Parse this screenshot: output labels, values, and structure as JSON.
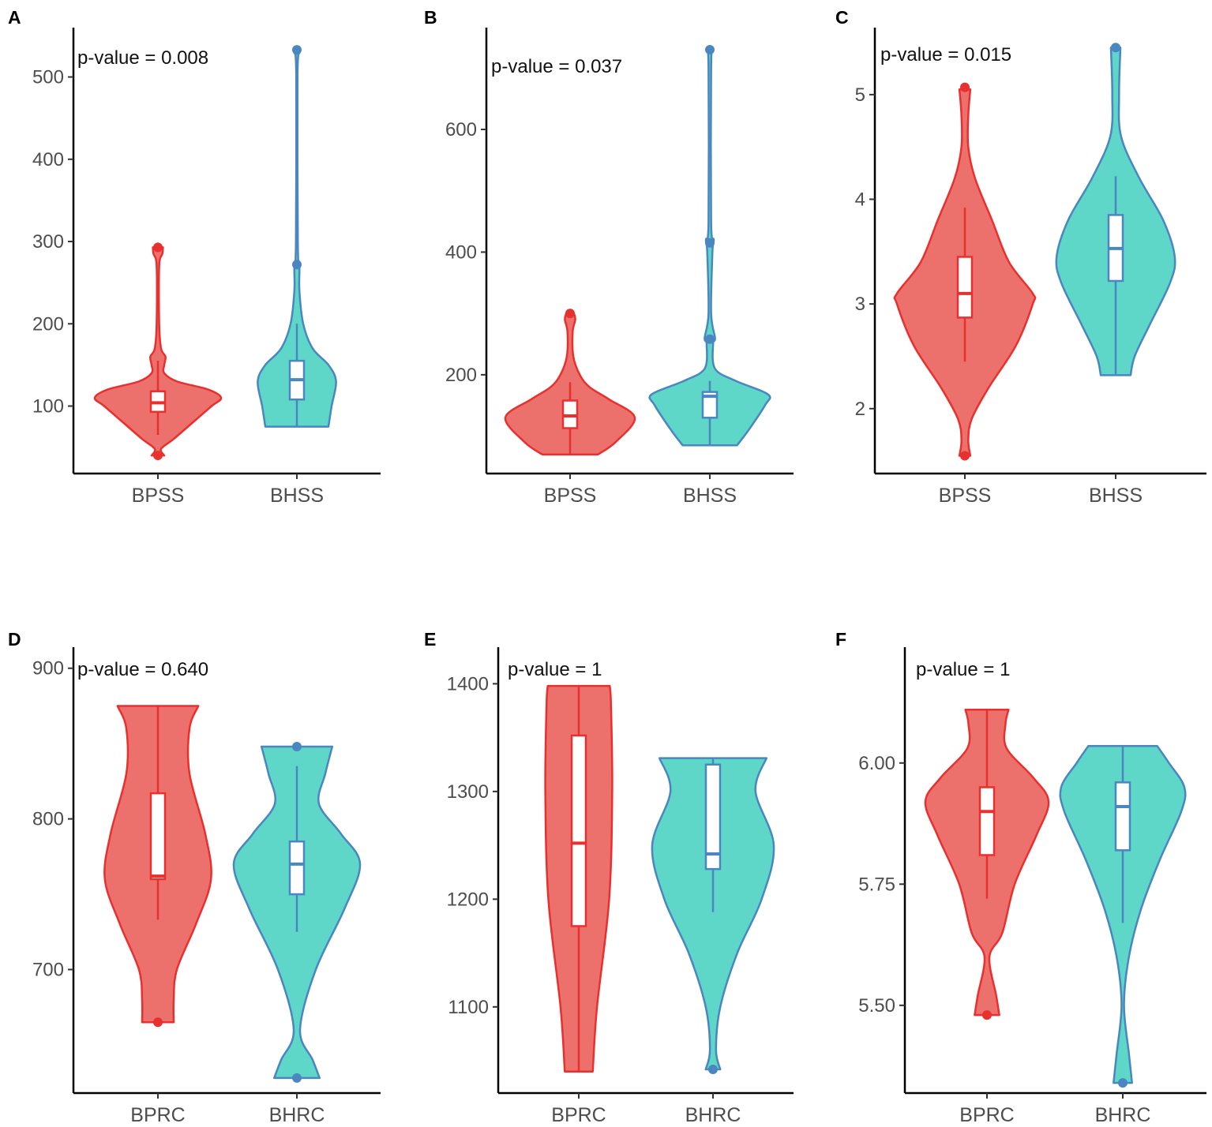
{
  "colors": {
    "group1_fill": "#ec706c",
    "group1_stroke": "#e8302e",
    "group2_fill": "#5ed6c8",
    "group2_stroke": "#4a86c0",
    "box_fill": "#ffffff",
    "axis": "#000000"
  },
  "chart_data": [
    {
      "panel": "A",
      "type": "violin",
      "annotation": "p-value = 0.008",
      "ylim": [
        18,
        560
      ],
      "yticks": [
        100,
        200,
        300,
        400,
        500
      ],
      "categories": [
        "BPSS",
        "BHSS"
      ],
      "groups": [
        {
          "name": "BPSS",
          "density": [
            [
              40,
              0.1
            ],
            [
              48,
              0.05
            ],
            [
              60,
              0.25
            ],
            [
              80,
              0.55
            ],
            [
              100,
              0.85
            ],
            [
              110,
              1.0
            ],
            [
              120,
              0.8
            ],
            [
              130,
              0.3
            ],
            [
              140,
              0.1
            ],
            [
              150,
              0.1
            ],
            [
              160,
              0.12
            ],
            [
              170,
              0.05
            ],
            [
              200,
              0.02
            ],
            [
              270,
              0.02
            ],
            [
              285,
              0.07
            ],
            [
              293,
              0.08
            ]
          ],
          "box": {
            "whisker_low": 65,
            "q1": 93,
            "median": 104,
            "q3": 118,
            "whisker_high": 155
          },
          "outliers": [
            40,
            293
          ]
        },
        {
          "name": "BHSS",
          "density": [
            [
              75,
              0.5
            ],
            [
              100,
              0.55
            ],
            [
              130,
              0.62
            ],
            [
              150,
              0.5
            ],
            [
              170,
              0.25
            ],
            [
              200,
              0.1
            ],
            [
              240,
              0.04
            ],
            [
              270,
              0.04
            ],
            [
              300,
              0.015
            ],
            [
              500,
              0.01
            ],
            [
              530,
              0.04
            ]
          ],
          "box": {
            "whisker_low": 75,
            "q1": 108,
            "median": 132,
            "q3": 155,
            "whisker_high": 200
          },
          "outliers": [
            272,
            533
          ]
        }
      ]
    },
    {
      "panel": "B",
      "type": "violin",
      "annotation": "p-value = 0.037",
      "ylim": [
        39,
        766
      ],
      "yticks": [
        200,
        400,
        600
      ],
      "categories": [
        "BPSS",
        "BHSS"
      ],
      "groups": [
        {
          "name": "BPSS",
          "density": [
            [
              70,
              0.43
            ],
            [
              90,
              0.7
            ],
            [
              130,
              1.0
            ],
            [
              160,
              0.6
            ],
            [
              180,
              0.3
            ],
            [
              200,
              0.15
            ],
            [
              230,
              0.05
            ],
            [
              270,
              0.04
            ],
            [
              290,
              0.08
            ],
            [
              300,
              0.06
            ]
          ],
          "box": {
            "whisker_low": 70,
            "q1": 113,
            "median": 133,
            "q3": 158,
            "whisker_high": 188
          },
          "outliers": [
            300
          ]
        },
        {
          "name": "BHSS",
          "density": [
            [
              85,
              0.42
            ],
            [
              110,
              0.6
            ],
            [
              150,
              0.85
            ],
            [
              168,
              0.9
            ],
            [
              190,
              0.4
            ],
            [
              210,
              0.08
            ],
            [
              250,
              0.05
            ],
            [
              260,
              0.08
            ],
            [
              300,
              0.02
            ],
            [
              400,
              0.04
            ],
            [
              420,
              0.06
            ],
            [
              450,
              0.02
            ],
            [
              700,
              0.02
            ],
            [
              730,
              0.05
            ]
          ],
          "box": {
            "whisker_low": 85,
            "q1": 130,
            "median": 165,
            "q3": 172,
            "whisker_high": 190
          },
          "outliers": [
            258,
            415,
            730
          ]
        }
      ]
    },
    {
      "panel": "C",
      "type": "violin",
      "annotation": "p-value = 0.015",
      "ylim": [
        1.38,
        5.64
      ],
      "yticks": [
        2,
        3,
        4,
        5
      ],
      "categories": [
        "BPSS",
        "BHSS"
      ],
      "groups": [
        {
          "name": "BPSS",
          "density": [
            [
              1.55,
              0.08
            ],
            [
              1.7,
              0.05
            ],
            [
              1.9,
              0.1
            ],
            [
              2.2,
              0.35
            ],
            [
              2.6,
              0.75
            ],
            [
              3.0,
              1.0
            ],
            [
              3.1,
              1.0
            ],
            [
              3.4,
              0.65
            ],
            [
              3.8,
              0.4
            ],
            [
              4.2,
              0.15
            ],
            [
              4.5,
              0.05
            ],
            [
              4.8,
              0.05
            ],
            [
              5.05,
              0.08
            ]
          ],
          "box": {
            "whisker_low": 2.45,
            "q1": 2.87,
            "median": 3.1,
            "q3": 3.45,
            "whisker_high": 3.92
          },
          "outliers": [
            1.55,
            5.07
          ]
        },
        {
          "name": "BHSS",
          "density": [
            [
              2.32,
              0.22
            ],
            [
              2.5,
              0.28
            ],
            [
              2.8,
              0.5
            ],
            [
              3.2,
              0.8
            ],
            [
              3.45,
              0.87
            ],
            [
              3.8,
              0.7
            ],
            [
              4.2,
              0.35
            ],
            [
              4.6,
              0.08
            ],
            [
              5.0,
              0.05
            ],
            [
              5.45,
              0.07
            ]
          ],
          "box": {
            "whisker_low": 2.33,
            "q1": 3.22,
            "median": 3.53,
            "q3": 3.85,
            "whisker_high": 4.22
          },
          "outliers": [
            5.45
          ]
        }
      ]
    },
    {
      "panel": "D",
      "type": "violin",
      "annotation": "p-value = 0.640",
      "ylim": [
        618,
        914
      ],
      "yticks": [
        700,
        800,
        900
      ],
      "categories": [
        "BPRC",
        "BHRC"
      ],
      "groups": [
        {
          "name": "BPRC",
          "density": [
            [
              665,
              0.25
            ],
            [
              680,
              0.25
            ],
            [
              700,
              0.3
            ],
            [
              730,
              0.6
            ],
            [
              760,
              0.84
            ],
            [
              790,
              0.75
            ],
            [
              830,
              0.5
            ],
            [
              860,
              0.5
            ],
            [
              875,
              0.64
            ]
          ],
          "box": {
            "whisker_low": 733,
            "q1": 760,
            "median": 762,
            "q3": 817,
            "whisker_high": 875
          },
          "outliers": [
            665
          ]
        },
        {
          "name": "BHRC",
          "density": [
            [
              628,
              0.36
            ],
            [
              640,
              0.25
            ],
            [
              660,
              0.05
            ],
            [
              700,
              0.3
            ],
            [
              740,
              0.75
            ],
            [
              770,
              1.0
            ],
            [
              790,
              0.7
            ],
            [
              810,
              0.35
            ],
            [
              830,
              0.45
            ],
            [
              848,
              0.56
            ]
          ],
          "box": {
            "whisker_low": 725,
            "q1": 750,
            "median": 770,
            "q3": 785,
            "whisker_high": 835
          },
          "outliers": [
            628,
            848
          ]
        }
      ]
    },
    {
      "panel": "E",
      "type": "violin",
      "annotation": "p-value = 1",
      "ylim": [
        1020,
        1434
      ],
      "yticks": [
        1100,
        1200,
        1300,
        1400
      ],
      "categories": [
        "BPRC",
        "BHRC"
      ],
      "groups": [
        {
          "name": "BPRC",
          "density": [
            [
              1040,
              0.23
            ],
            [
              1100,
              0.3
            ],
            [
              1200,
              0.5
            ],
            [
              1300,
              0.55
            ],
            [
              1380,
              0.53
            ],
            [
              1398,
              0.51
            ]
          ],
          "box": {
            "whisker_low": 1040,
            "q1": 1175,
            "median": 1252,
            "q3": 1352,
            "whisker_high": 1398
          },
          "outliers": []
        },
        {
          "name": "BHRC",
          "density": [
            [
              1042,
              0.12
            ],
            [
              1060,
              0.05
            ],
            [
              1100,
              0.12
            ],
            [
              1150,
              0.4
            ],
            [
              1200,
              0.8
            ],
            [
              1250,
              1.0
            ],
            [
              1300,
              0.7
            ],
            [
              1331,
              0.88
            ]
          ],
          "box": {
            "whisker_low": 1188,
            "q1": 1228,
            "median": 1242,
            "q3": 1325,
            "whisker_high": 1331
          },
          "outliers": [
            1042
          ]
        }
      ]
    },
    {
      "panel": "F",
      "type": "violin",
      "annotation": "p-value = 1",
      "ylim": [
        5.319,
        6.239
      ],
      "yticks": [
        5.5,
        5.75,
        6.0
      ],
      "ytick_labels": [
        "5.50",
        "5.75",
        "6.00"
      ],
      "categories": [
        "BPRC",
        "BHRC"
      ],
      "groups": [
        {
          "name": "BPRC",
          "density": [
            [
              5.48,
              0.2
            ],
            [
              5.52,
              0.15
            ],
            [
              5.6,
              0.04
            ],
            [
              5.65,
              0.25
            ],
            [
              5.75,
              0.45
            ],
            [
              5.85,
              0.8
            ],
            [
              5.92,
              1.0
            ],
            [
              5.97,
              0.75
            ],
            [
              6.03,
              0.32
            ],
            [
              6.08,
              0.3
            ],
            [
              6.11,
              0.35
            ]
          ],
          "box": {
            "whisker_low": 5.72,
            "q1": 5.81,
            "median": 5.9,
            "q3": 5.95,
            "whisker_high": 6.11
          },
          "outliers": [
            5.48
          ]
        },
        {
          "name": "BHRC",
          "density": [
            [
              5.34,
              0.15
            ],
            [
              5.4,
              0.1
            ],
            [
              5.5,
              0.02
            ],
            [
              5.6,
              0.1
            ],
            [
              5.7,
              0.3
            ],
            [
              5.8,
              0.6
            ],
            [
              5.9,
              0.95
            ],
            [
              5.95,
              1.0
            ],
            [
              6.0,
              0.75
            ],
            [
              6.035,
              0.56
            ]
          ],
          "box": {
            "whisker_low": 5.67,
            "q1": 5.82,
            "median": 5.91,
            "q3": 5.96,
            "whisker_high": 6.035
          },
          "outliers": [
            5.34
          ]
        }
      ]
    }
  ]
}
